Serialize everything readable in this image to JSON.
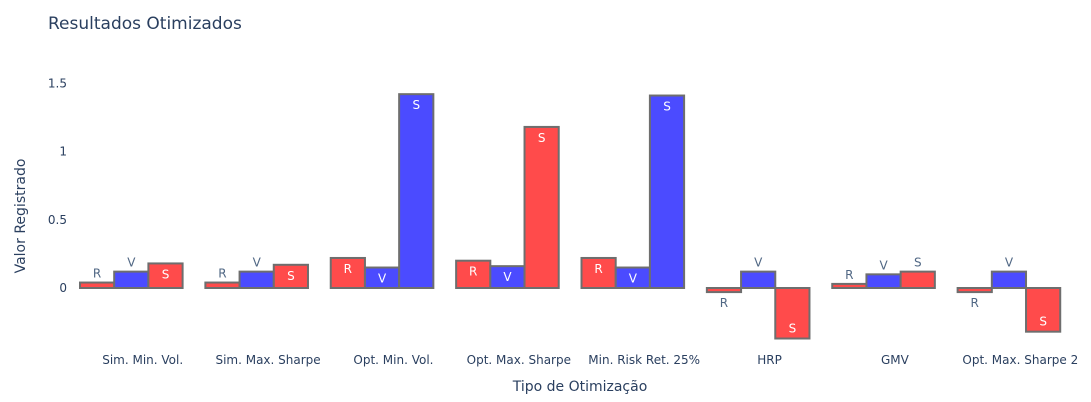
{
  "chart_data": {
    "type": "bar",
    "title": "Resultados Otimizados",
    "xlabel": "Tipo de Otimização",
    "ylabel": "Valor Registrado",
    "categories": [
      "Sim. Min. Vol.",
      "Sim. Max. Sharpe",
      "Opt. Min. Vol.",
      "Opt. Max. Sharpe",
      "Min. Risk Ret. 25%",
      "HRP",
      "GMV",
      "Opt. Max. Sharpe 2"
    ],
    "y_ticks": [
      {
        "value": 0,
        "label": "0"
      },
      {
        "value": 0.5,
        "label": "0.5"
      },
      {
        "value": 1,
        "label": "1"
      },
      {
        "value": 1.5,
        "label": "1.5"
      }
    ],
    "ylim": [
      -0.4,
      1.75
    ],
    "grid": false,
    "legend": "none",
    "bar_edge_color": "#6e6e6e",
    "groups": [
      {
        "bars": [
          {
            "value": 0.04,
            "label": "R",
            "color": "#ff4b4b"
          },
          {
            "value": 0.12,
            "label": "V",
            "color": "#4b4bff"
          },
          {
            "value": 0.18,
            "label": "S",
            "color": "#ff4b4b"
          }
        ]
      },
      {
        "bars": [
          {
            "value": 0.04,
            "label": "R",
            "color": "#ff4b4b"
          },
          {
            "value": 0.12,
            "label": "V",
            "color": "#4b4bff"
          },
          {
            "value": 0.17,
            "label": "S",
            "color": "#ff4b4b"
          }
        ]
      },
      {
        "bars": [
          {
            "value": 0.22,
            "label": "R",
            "color": "#ff4b4b"
          },
          {
            "value": 0.15,
            "label": "V",
            "color": "#4b4bff"
          },
          {
            "value": 1.42,
            "label": "S",
            "color": "#4b4bff"
          }
        ]
      },
      {
        "bars": [
          {
            "value": 0.2,
            "label": "R",
            "color": "#ff4b4b"
          },
          {
            "value": 0.16,
            "label": "V",
            "color": "#4b4bff"
          },
          {
            "value": 1.18,
            "label": "S",
            "color": "#ff4b4b"
          }
        ]
      },
      {
        "bars": [
          {
            "value": 0.22,
            "label": "R",
            "color": "#ff4b4b"
          },
          {
            "value": 0.15,
            "label": "V",
            "color": "#4b4bff"
          },
          {
            "value": 1.41,
            "label": "S",
            "color": "#4b4bff"
          }
        ]
      },
      {
        "bars": [
          {
            "value": -0.03,
            "label": "R",
            "color": "#ff4b4b"
          },
          {
            "value": 0.12,
            "label": "V",
            "color": "#4b4bff"
          },
          {
            "value": -0.37,
            "label": "S",
            "color": "#ff4b4b"
          }
        ]
      },
      {
        "bars": [
          {
            "value": 0.03,
            "label": "R",
            "color": "#ff4b4b"
          },
          {
            "value": 0.1,
            "label": "V",
            "color": "#4b4bff"
          },
          {
            "value": 0.12,
            "label": "S",
            "color": "#ff4b4b"
          }
        ]
      },
      {
        "bars": [
          {
            "value": -0.03,
            "label": "R",
            "color": "#ff4b4b"
          },
          {
            "value": 0.12,
            "label": "V",
            "color": "#4b4bff"
          },
          {
            "value": -0.32,
            "label": "S",
            "color": "#ff4b4b"
          }
        ]
      }
    ]
  }
}
